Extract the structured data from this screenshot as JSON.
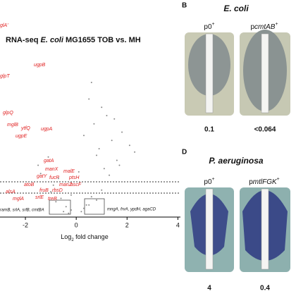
{
  "chart_data": {
    "type": "scatter",
    "title": [
      "RNA-seq ",
      "E. coli",
      " MG1655 TOB vs. MH"
    ],
    "x_label": [
      "Log",
      "2",
      " fold change"
    ],
    "xlim": [
      -3,
      4.1
    ],
    "xticks": [
      -2,
      0,
      2,
      4
    ],
    "ylim": [
      0,
      100
    ],
    "color": "#888888",
    "x": [
      -0.5,
      -0.3,
      -0.2,
      0.2,
      0.3,
      0.5,
      -0.8,
      0.8,
      -1,
      1,
      -1.2,
      1.3,
      -0.6,
      0.6,
      -1.5,
      1.6,
      -0.4,
      0.4,
      -0.9,
      1.1,
      0.9,
      1.4,
      1.8,
      2.1,
      0.7,
      1.2,
      -1.1,
      -1.4,
      0.5,
      1.0,
      1.5,
      2.3,
      0.3,
      -0.7,
      0.6,
      1.7,
      -0.2,
      0.1,
      0.8,
      1.9
    ],
    "values": [
      2,
      1,
      3,
      2,
      4,
      6,
      8,
      9,
      14,
      15,
      20,
      24,
      10,
      11,
      30,
      33,
      5,
      6,
      18,
      28,
      40,
      45,
      50,
      42,
      55,
      60,
      35,
      25,
      70,
      65,
      58,
      38,
      48,
      22,
      80,
      30,
      12,
      26,
      36,
      20
    ],
    "genes": [
      "glA'",
      "ugpB",
      "glpT",
      "glpQ",
      "mglB",
      "ytfQ",
      "ugpA",
      "ugpE",
      "gatA",
      "manX",
      "fucP",
      "malE",
      "ptsH",
      "gatY",
      "manZ",
      "ascF",
      "atoB",
      "rbsD",
      "fruB",
      "treB",
      "srlE",
      "alsA",
      "mglA"
    ],
    "annotations": [
      "ramB, srlA, srlB, cmtBA",
      "mngA, frvA, ypdH, agaCD"
    ]
  },
  "panel_b": {
    "letter": "B",
    "title": "E. coli",
    "strains": [
      [
        "p0",
        "+"
      ],
      [
        "p",
        "cmtAB",
        "+"
      ]
    ],
    "mic": [
      "0.1",
      "<0.064"
    ]
  },
  "panel_d": {
    "letter": "D",
    "title": "P. aeruginosa",
    "strains": [
      [
        "p0",
        "+"
      ],
      [
        "p",
        "mtlFGK",
        "+"
      ]
    ],
    "mic": [
      "4",
      "0.4"
    ]
  }
}
